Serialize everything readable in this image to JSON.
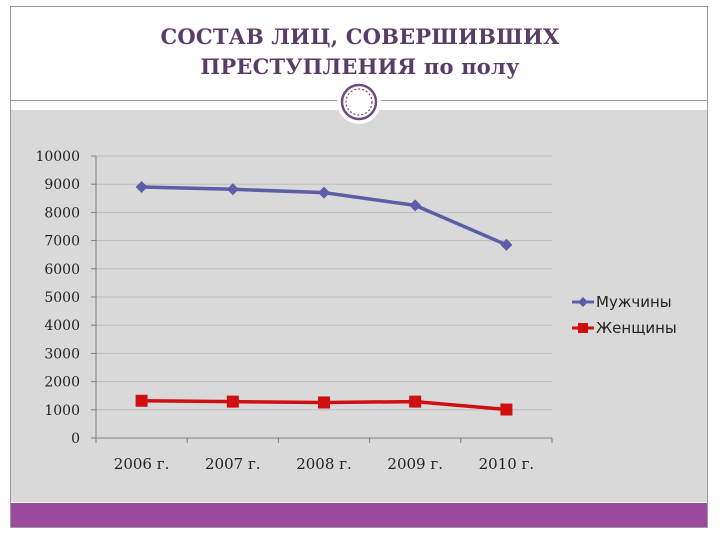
{
  "slide": {
    "title_line1": "СОСТАВ ЛИЦ, СОВЕРШИВШИХ",
    "title_line2": "ПРЕСТУПЛЕНИЯ по полу"
  },
  "colors": {
    "title": "#5a3d66",
    "panel": "#d9d9d9",
    "bottom_bar": "#9c4a9c",
    "men": "#5b5ea6",
    "women": "#d01010"
  },
  "chart_data": {
    "type": "line",
    "categories": [
      "2006 г.",
      "2007 г.",
      "2008 г.",
      "2009 г.",
      "2010 г."
    ],
    "series": [
      {
        "name": "Мужчины",
        "marker": "diamond",
        "color": "#5b5ea6",
        "values": [
          8900,
          8820,
          8700,
          8250,
          6850
        ]
      },
      {
        "name": "Женщины",
        "marker": "square",
        "color": "#d01010",
        "values": [
          1320,
          1290,
          1260,
          1290,
          1010
        ]
      }
    ],
    "yticks": [
      0,
      1000,
      2000,
      3000,
      4000,
      5000,
      6000,
      7000,
      8000,
      9000,
      10000
    ],
    "ylim": [
      0,
      10000
    ],
    "grid": true,
    "legend_position": "right"
  }
}
